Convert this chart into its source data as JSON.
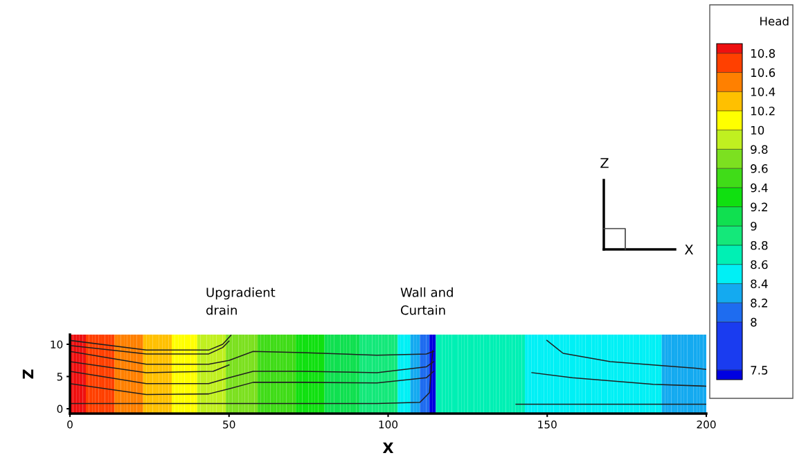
{
  "chart_data": {
    "type": "heatmap",
    "cells": [
      [
        10.8,
        10.8,
        10.8,
        10.8,
        10.8,
        10.6,
        10.6,
        10.6,
        10.6,
        10.6,
        10.6,
        10.6,
        10.6,
        10.6,
        10.4,
        10.4,
        10.4,
        10.4,
        10.4,
        10.4,
        10.4,
        10.4,
        10.4,
        10.2,
        10.2,
        10.2,
        10.2,
        10.2,
        10.2,
        10.2,
        10.2,
        10.2,
        10,
        10,
        10,
        10,
        10,
        10,
        10,
        10,
        9.8,
        9.8,
        9.8,
        9.8,
        9.8,
        9.8,
        9.8,
        9.8,
        9.8,
        9.6,
        9.6,
        9.6,
        9.6,
        9.6,
        9.6,
        9.6,
        9.6,
        9.6,
        9.6,
        9.4,
        9.4,
        9.4,
        9.4,
        9.4,
        9.4,
        9.4,
        9.4,
        9.4,
        9.4,
        9.4,
        9.4,
        9.2,
        9.2,
        9.2,
        9.2,
        9.2,
        9.2,
        9.2,
        9.2,
        9.2,
        9,
        9,
        9,
        9,
        9,
        9,
        9,
        9,
        9,
        9,
        9,
        8.8,
        8.8,
        8.8,
        8.8,
        8.8,
        8.8,
        8.8,
        8.8,
        8.8,
        8.8,
        8.8,
        8.8,
        8.4,
        8.4,
        8.4,
        8.4,
        8.2,
        8.2,
        8.2,
        8,
        8,
        8,
        7.4,
        7.4,
        8.6,
        8.6,
        8.6,
        8.6,
        8.6,
        8.6,
        8.6,
        8.6,
        8.6,
        8.6,
        8.6,
        8.6,
        8.6,
        8.6,
        8.6,
        8.6,
        8.6,
        8.6,
        8.6,
        8.6,
        8.6,
        8.6,
        8.6,
        8.6,
        8.6,
        8.6,
        8.6,
        8.6,
        8.4,
        8.4,
        8.4,
        8.4,
        8.4,
        8.4,
        8.4,
        8.4,
        8.4,
        8.4,
        8.4,
        8.4,
        8.4,
        8.4,
        8.4,
        8.4,
        8.4,
        8.4,
        8.4,
        8.4,
        8.4,
        8.4,
        8.4,
        8.4,
        8.4,
        8.4,
        8.4,
        8.4,
        8.4,
        8.4,
        8.4,
        8.4,
        8.4,
        8.4,
        8.4,
        8.4,
        8.4,
        8.4,
        8.4,
        8.4,
        8.4,
        8.4,
        8.4,
        8.2,
        8.2,
        8.2,
        8.2,
        8.2,
        8.2,
        8.2,
        8.2,
        8.2,
        8.2,
        8.2,
        8.2,
        8.2,
        8.2
      ]
    ],
    "colors": [
      "#0000e0",
      "#1a3cf0",
      "#1e6cf0",
      "#14aaf0",
      "#00f0f5",
      "#00f0b4",
      "#14e87a",
      "#10e050",
      "#10e010",
      "#40dc18",
      "#7ce020",
      "#c0f020",
      "#ffff00",
      "#ffc000",
      "#ff8000",
      "#ff4000",
      "#ee1010"
    ],
    "clim": [
      7.4,
      10.9
    ],
    "cticks": [
      7.5,
      8,
      8.2,
      8.4,
      8.6,
      8.8,
      9,
      9.2,
      9.4,
      9.6,
      9.8,
      10,
      10.2,
      10.4,
      10.6,
      10.8
    ],
    "clabel": "Head",
    "xlabel": "X",
    "ylabel": "Z",
    "xlim": [
      0,
      200
    ],
    "ylim": [
      -0.75,
      11.5
    ],
    "xticks": [
      0,
      50,
      100,
      150,
      200
    ],
    "yticks": [
      0,
      5,
      10
    ],
    "series": [
      {
        "type": "line",
        "color": "#202020",
        "x": [
          0,
          24,
          43.6,
          48,
          50.6
        ],
        "values": [
          10.6,
          9.1,
          9.1,
          10,
          11.4
        ]
      },
      {
        "type": "line",
        "color": "#202020",
        "x": [
          0,
          24,
          43.6,
          48,
          50
        ],
        "values": [
          9.8,
          8.5,
          8.5,
          9.5,
          10.5
        ]
      },
      {
        "type": "line",
        "color": "#202020",
        "x": [
          0,
          24,
          43.6,
          50,
          57.6,
          73,
          96.5,
          112,
          114.3
        ],
        "values": [
          8.9,
          6.9,
          6.9,
          7.5,
          8.9,
          8.7,
          8.3,
          8.5,
          8.9
        ]
      },
      {
        "type": "line",
        "color": "#202020",
        "x": [
          0,
          24,
          45,
          50
        ],
        "values": [
          7.3,
          5.6,
          5.8,
          6.8
        ]
      },
      {
        "type": "line",
        "color": "#202020",
        "x": [
          0,
          24,
          43.6,
          50,
          57.6,
          73,
          96.5,
          112,
          114.3
        ],
        "values": [
          5.8,
          3.9,
          3.9,
          4.8,
          5.8,
          5.8,
          5.6,
          6.5,
          7.3
        ]
      },
      {
        "type": "line",
        "color": "#202020",
        "x": [
          0,
          24,
          43.6,
          50,
          57.6,
          73,
          96.5,
          112,
          114.3
        ],
        "values": [
          3.9,
          2.2,
          2.3,
          3.1,
          4.1,
          4.1,
          4.0,
          4.8,
          5.8
        ]
      },
      {
        "type": "line",
        "color": "#202020",
        "x": [
          0,
          24,
          50,
          73,
          96.5,
          110,
          113,
          114
        ],
        "values": [
          0.8,
          0.8,
          0.8,
          0.8,
          0.8,
          1.0,
          2.5,
          9.0
        ]
      },
      {
        "type": "line",
        "color": "#202020",
        "x": [
          149.9,
          155,
          169.8,
          196.6,
          200
        ],
        "values": [
          10.6,
          8.6,
          7.3,
          6.3,
          6.1
        ]
      },
      {
        "type": "line",
        "color": "#202020",
        "x": [
          145.2,
          157.9,
          183.3,
          200
        ],
        "values": [
          5.6,
          4.8,
          3.8,
          3.5
        ]
      },
      {
        "type": "line",
        "color": "#202020",
        "x": [
          140.2,
          200
        ],
        "values": [
          0.7,
          0.7
        ]
      }
    ],
    "annotations": [
      "Upgradient\ndrain",
      "Wall and\nCurtain",
      "Z",
      "X"
    ]
  }
}
